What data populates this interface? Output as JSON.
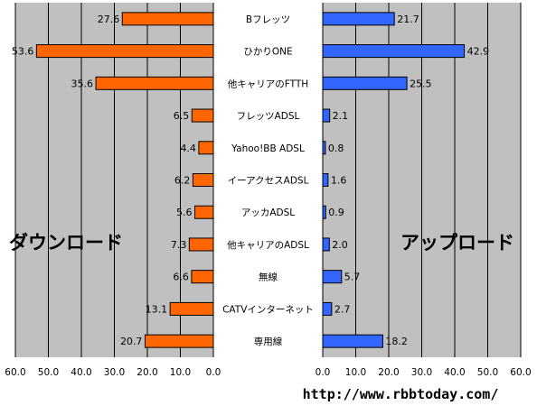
{
  "chart_data": {
    "type": "bar",
    "orientation": "horizontal",
    "categories": [
      "Bフレッツ",
      "ひかりONE",
      "他キャリアのFTTH",
      "フレッツADSL",
      "Yahoo!BB ADSL",
      "イーアクセスADSL",
      "アッカADSL",
      "他キャリアのADSL",
      "無線",
      "CATVインターネット",
      "専用線"
    ],
    "series": [
      {
        "name": "ダウンロード",
        "values": [
          27.6,
          53.6,
          35.6,
          6.5,
          4.4,
          6.2,
          5.6,
          7.3,
          6.6,
          13.1,
          20.7
        ],
        "color": "#ff6600",
        "labels": [
          "27.6",
          "53.6",
          "35.6",
          "6.5",
          "4.4",
          "6.2",
          "5.6",
          "7.3",
          "6.6",
          "13.1",
          "20.7"
        ]
      },
      {
        "name": "アップロード",
        "values": [
          21.7,
          42.9,
          25.5,
          2.1,
          0.8,
          1.6,
          0.9,
          2.0,
          5.7,
          2.7,
          18.2
        ],
        "color": "#3366ff",
        "labels": [
          "21.7",
          "42.9",
          "25.5",
          "2.1",
          "0.8",
          "1.6",
          "0.9",
          "2.0",
          "5.7",
          "2.7",
          "18.2"
        ]
      }
    ],
    "xlim": [
      0,
      60
    ],
    "ticks": [
      "60.0",
      "50.0",
      "40.0",
      "30.0",
      "20.0",
      "10.0",
      "0.0"
    ],
    "ticks_right": [
      "0.0",
      "10.0",
      "20.0",
      "30.0",
      "40.0",
      "50.0",
      "60.0"
    ],
    "grid": true,
    "plot_background": "#c0c0c0"
  },
  "footer": {
    "url": "http://www.rbbtoday.com/"
  }
}
